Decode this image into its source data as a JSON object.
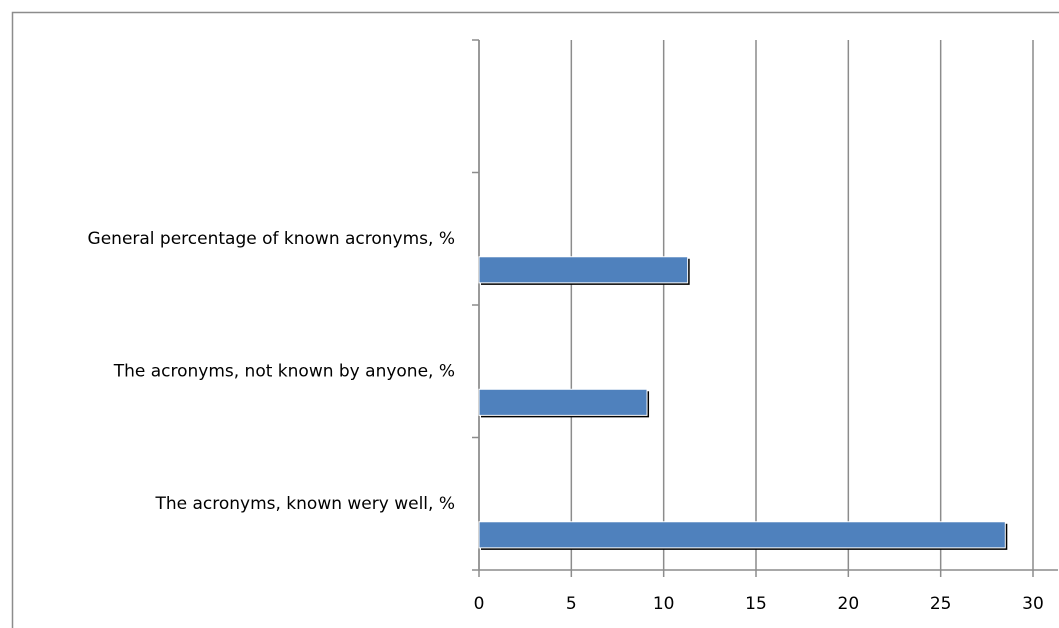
{
  "chart_data": {
    "type": "hbar",
    "categories": [
      "The acronyms, known wery well, %",
      "The acronyms, not known by anyone, %",
      "General percentage of known acronyms, %",
      null
    ],
    "values": [
      28.5,
      9.1,
      11.3,
      null
    ],
    "color": "#4f81bd",
    "xlim": [
      0,
      30
    ],
    "xticks": [
      0,
      5,
      10,
      15,
      20,
      25,
      30
    ],
    "grid": true
  }
}
